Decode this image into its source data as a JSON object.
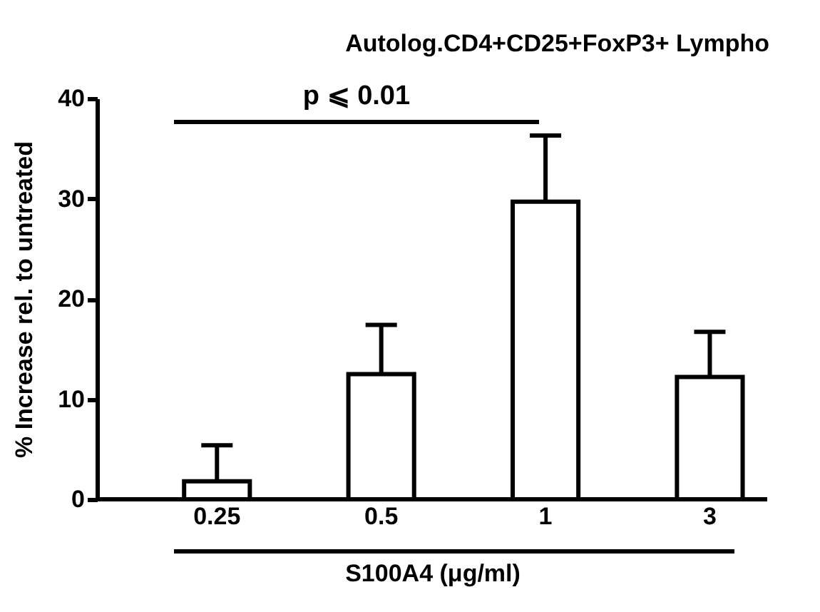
{
  "chart_data": {
    "type": "bar",
    "title": "Autolog.CD4+CD25+FoxP3+ Lympho",
    "xlabel": "S100A4 (μg/ml)",
    "ylabel": "% Increase rel. to untreated",
    "categories": [
      "0.25",
      "0.5",
      "1",
      "3"
    ],
    "series": [
      {
        "color": "#ffffff",
        "values": [
          1.8,
          12.5,
          29.7,
          12.2
        ],
        "errors": [
          [
            1.8,
            5.4
          ],
          [
            12.5,
            17.4
          ],
          [
            29.7,
            36.3
          ],
          [
            12.2,
            16.7
          ]
        ]
      }
    ],
    "ylim": [
      0,
      40
    ],
    "yticks": [
      0,
      10,
      20,
      30,
      40
    ],
    "grid": false,
    "annotations": [
      "p ⩽ 0.01"
    ]
  }
}
